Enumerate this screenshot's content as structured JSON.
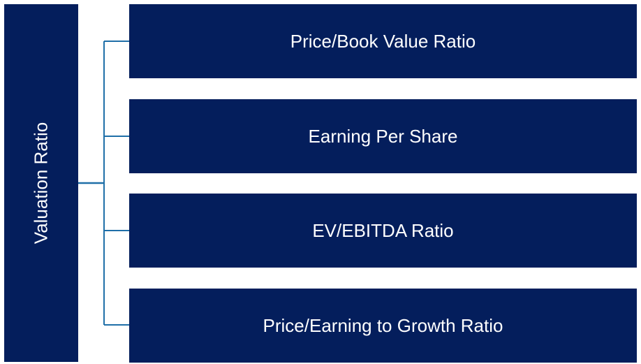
{
  "diagram": {
    "root": {
      "label": "Valuation Ratio"
    },
    "children": [
      {
        "label": "Price/Book Value Ratio"
      },
      {
        "label": "Earning Per Share"
      },
      {
        "label": "EV/EBITDA Ratio"
      },
      {
        "label": "Price/Earning to Growth Ratio"
      }
    ],
    "colors": {
      "box_fill": "#041e5c",
      "box_text": "#ffffff",
      "connector": "#1f6fa8"
    }
  }
}
